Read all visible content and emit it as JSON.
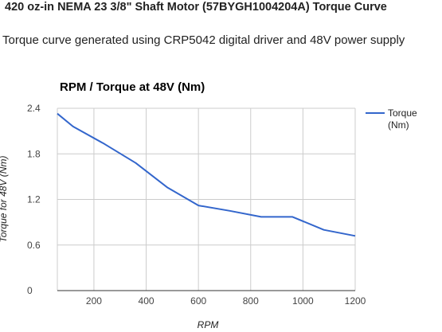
{
  "page": {
    "heading": "420 oz-in NEMA 23 3/8\" Shaft Motor (57BYGH1004204A) Torque Curve",
    "subheading": "Torque curve generated using CRP5042 digital driver and 48V power supply"
  },
  "chart_data": {
    "type": "line",
    "title": "RPM / Torque at 48V (Nm)",
    "xlabel": "RPM",
    "ylabel": "Torque for 48V (Nm)",
    "xlim": [
      60,
      1200
    ],
    "ylim": [
      0,
      2.4
    ],
    "xticks": [
      "200",
      "400",
      "600",
      "800",
      "1000",
      "1200"
    ],
    "yticks": [
      "0",
      "0.6",
      "1.2",
      "1.8",
      "2.4"
    ],
    "grid": true,
    "legend_position": "right",
    "series": [
      {
        "name": "Torque (Nm)",
        "color": "#3366cc",
        "x": [
          60,
          120,
          240,
          360,
          480,
          600,
          720,
          840,
          960,
          1080,
          1200
        ],
        "y": [
          2.33,
          2.16,
          1.93,
          1.68,
          1.36,
          1.12,
          1.05,
          0.97,
          0.97,
          0.8,
          0.72
        ]
      }
    ]
  }
}
